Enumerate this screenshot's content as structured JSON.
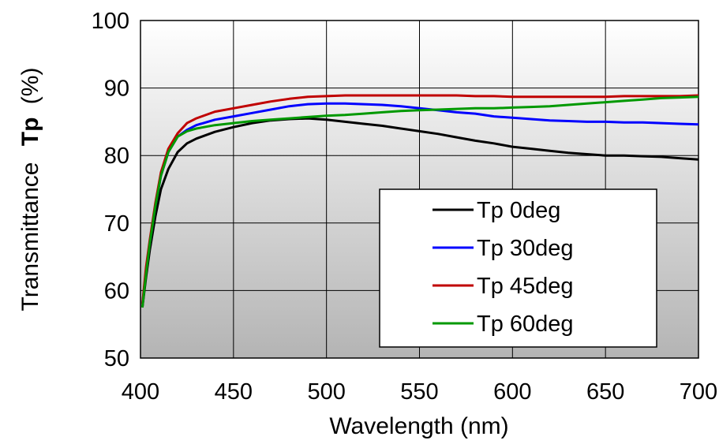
{
  "chart_data": {
    "type": "line",
    "xlabel": "Wavelength (nm)",
    "ylabel_prefix": "Transmittance",
    "ylabel_symbol": "Tp",
    "ylabel_unit": "(%)",
    "xlim": [
      400,
      700
    ],
    "ylim": [
      50,
      100
    ],
    "x_ticks": [
      400,
      450,
      500,
      550,
      600,
      650,
      700
    ],
    "y_ticks": [
      50,
      60,
      70,
      80,
      90,
      100
    ],
    "grid": true,
    "legend_position": "bottom-right",
    "series": [
      {
        "name": "Tp 0deg",
        "color": "#000000",
        "points": [
          [
            401,
            57.5
          ],
          [
            403,
            62
          ],
          [
            405,
            66
          ],
          [
            408,
            71
          ],
          [
            411,
            75
          ],
          [
            415,
            78
          ],
          [
            420,
            80.5
          ],
          [
            425,
            81.8
          ],
          [
            430,
            82.5
          ],
          [
            440,
            83.5
          ],
          [
            450,
            84.2
          ],
          [
            460,
            84.8
          ],
          [
            470,
            85.2
          ],
          [
            480,
            85.4
          ],
          [
            490,
            85.5
          ],
          [
            500,
            85.3
          ],
          [
            510,
            85
          ],
          [
            520,
            84.7
          ],
          [
            530,
            84.4
          ],
          [
            540,
            84
          ],
          [
            550,
            83.6
          ],
          [
            560,
            83.2
          ],
          [
            570,
            82.7
          ],
          [
            580,
            82.2
          ],
          [
            590,
            81.8
          ],
          [
            600,
            81.3
          ],
          [
            610,
            81
          ],
          [
            620,
            80.7
          ],
          [
            630,
            80.4
          ],
          [
            640,
            80.2
          ],
          [
            650,
            80
          ],
          [
            660,
            80
          ],
          [
            670,
            79.9
          ],
          [
            680,
            79.8
          ],
          [
            690,
            79.6
          ],
          [
            700,
            79.4
          ]
        ]
      },
      {
        "name": "Tp 30deg",
        "color": "#0000ff",
        "points": [
          [
            401,
            58
          ],
          [
            403,
            63
          ],
          [
            405,
            67
          ],
          [
            408,
            72.5
          ],
          [
            411,
            77
          ],
          [
            415,
            80.5
          ],
          [
            420,
            82.8
          ],
          [
            425,
            83.8
          ],
          [
            430,
            84.5
          ],
          [
            440,
            85.3
          ],
          [
            450,
            85.8
          ],
          [
            460,
            86.3
          ],
          [
            470,
            86.8
          ],
          [
            480,
            87.3
          ],
          [
            490,
            87.6
          ],
          [
            500,
            87.7
          ],
          [
            510,
            87.7
          ],
          [
            520,
            87.6
          ],
          [
            530,
            87.5
          ],
          [
            540,
            87.3
          ],
          [
            550,
            87
          ],
          [
            560,
            86.7
          ],
          [
            570,
            86.4
          ],
          [
            580,
            86.2
          ],
          [
            590,
            85.8
          ],
          [
            600,
            85.6
          ],
          [
            610,
            85.4
          ],
          [
            620,
            85.2
          ],
          [
            630,
            85.1
          ],
          [
            640,
            85
          ],
          [
            650,
            85
          ],
          [
            660,
            84.9
          ],
          [
            670,
            84.9
          ],
          [
            680,
            84.8
          ],
          [
            690,
            84.7
          ],
          [
            700,
            84.6
          ]
        ]
      },
      {
        "name": "Tp 45deg",
        "color": "#c00000",
        "points": [
          [
            401,
            58
          ],
          [
            403,
            63.5
          ],
          [
            405,
            67.5
          ],
          [
            408,
            73
          ],
          [
            411,
            77.5
          ],
          [
            415,
            81
          ],
          [
            420,
            83.3
          ],
          [
            425,
            84.8
          ],
          [
            430,
            85.5
          ],
          [
            440,
            86.5
          ],
          [
            450,
            87
          ],
          [
            460,
            87.5
          ],
          [
            470,
            88
          ],
          [
            480,
            88.4
          ],
          [
            490,
            88.7
          ],
          [
            500,
            88.8
          ],
          [
            510,
            88.9
          ],
          [
            520,
            88.9
          ],
          [
            530,
            88.9
          ],
          [
            540,
            88.9
          ],
          [
            550,
            88.9
          ],
          [
            560,
            88.9
          ],
          [
            570,
            88.9
          ],
          [
            580,
            88.8
          ],
          [
            590,
            88.8
          ],
          [
            600,
            88.7
          ],
          [
            610,
            88.7
          ],
          [
            620,
            88.7
          ],
          [
            630,
            88.7
          ],
          [
            640,
            88.7
          ],
          [
            650,
            88.7
          ],
          [
            660,
            88.8
          ],
          [
            670,
            88.8
          ],
          [
            680,
            88.8
          ],
          [
            690,
            88.8
          ],
          [
            700,
            88.9
          ]
        ]
      },
      {
        "name": "Tp 60deg",
        "color": "#009900",
        "points": [
          [
            401,
            57.5
          ],
          [
            403,
            62.5
          ],
          [
            405,
            67
          ],
          [
            408,
            72.5
          ],
          [
            411,
            77
          ],
          [
            415,
            80.5
          ],
          [
            420,
            82.8
          ],
          [
            425,
            83.6
          ],
          [
            430,
            84
          ],
          [
            440,
            84.5
          ],
          [
            450,
            84.8
          ],
          [
            460,
            85.1
          ],
          [
            470,
            85.3
          ],
          [
            480,
            85.5
          ],
          [
            490,
            85.7
          ],
          [
            500,
            85.9
          ],
          [
            510,
            86
          ],
          [
            520,
            86.2
          ],
          [
            530,
            86.4
          ],
          [
            540,
            86.6
          ],
          [
            550,
            86.7
          ],
          [
            560,
            86.8
          ],
          [
            570,
            86.9
          ],
          [
            580,
            87
          ],
          [
            590,
            87
          ],
          [
            600,
            87.1
          ],
          [
            610,
            87.2
          ],
          [
            620,
            87.3
          ],
          [
            630,
            87.5
          ],
          [
            640,
            87.7
          ],
          [
            650,
            87.9
          ],
          [
            660,
            88.1
          ],
          [
            670,
            88.3
          ],
          [
            680,
            88.5
          ],
          [
            690,
            88.6
          ],
          [
            700,
            88.7
          ]
        ]
      }
    ]
  }
}
